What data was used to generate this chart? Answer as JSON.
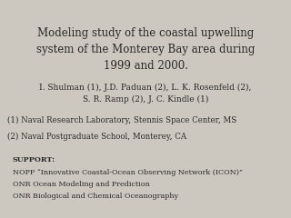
{
  "background_color": "#ccc8c0",
  "title_lines": [
    "Modeling study of the coastal upwelling",
    "system of the Monterey Bay area during",
    "1999 and 2000."
  ],
  "authors_lines": [
    "I. Shulman (1), J.D. Paduan (2), L. K. Rosenfeld (2),",
    "S. R. Ramp (2), J. C. Kindle (1)"
  ],
  "affiliations": [
    "(1) Naval Research Laboratory, Stennis Space Center, MS",
    "(2) Naval Postgraduate School, Monterey, CA"
  ],
  "support_label": "SUPPORT:",
  "support_items": [
    "NOPP “Innovative Coastal-Ocean Observing Network (ICON)”",
    "ONR Ocean Modeling and Prediction",
    "ONR Biological and Chemical Oceanography"
  ],
  "title_fontsize": 8.5,
  "authors_fontsize": 6.5,
  "affiliations_fontsize": 6.2,
  "support_fontsize": 5.8,
  "text_color": "#2a2a2a"
}
